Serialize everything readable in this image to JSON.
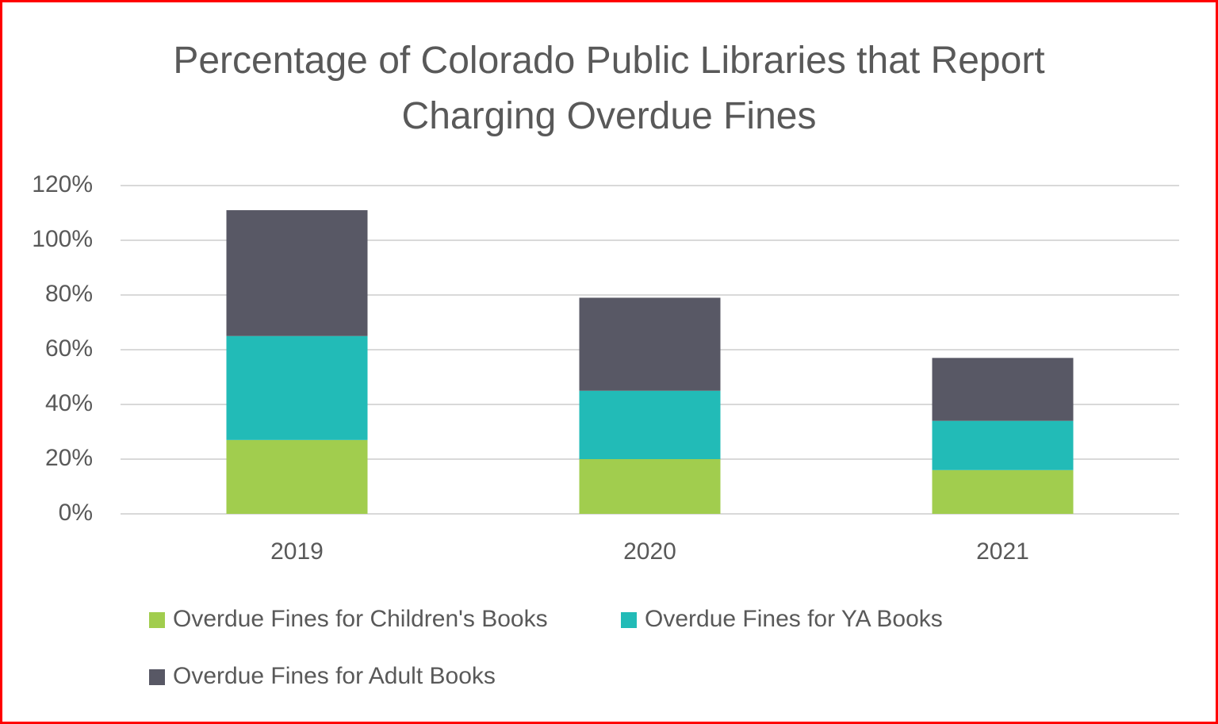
{
  "chart_data": {
    "type": "stacked-bar",
    "title": "Percentage of Colorado Public Libraries that Report Charging Overdue Fines",
    "categories": [
      "2019",
      "2020",
      "2021"
    ],
    "series": [
      {
        "name": "Overdue Fines for Children's Books",
        "color": "#a1cd4e",
        "values": [
          27,
          20,
          16
        ]
      },
      {
        "name": "Overdue Fines for YA Books",
        "color": "#22bbb7",
        "values": [
          38,
          25,
          18
        ]
      },
      {
        "name": "Overdue Fines for Adult Books",
        "color": "#585865",
        "values": [
          46,
          34,
          23
        ]
      }
    ],
    "ylim": [
      0,
      120
    ],
    "yticks": [
      {
        "value": 0,
        "label": "0%"
      },
      {
        "value": 20,
        "label": "20%"
      },
      {
        "value": 40,
        "label": "40%"
      },
      {
        "value": 60,
        "label": "60%"
      },
      {
        "value": 80,
        "label": "80%"
      },
      {
        "value": 100,
        "label": "100%"
      },
      {
        "value": 120,
        "label": "120%"
      }
    ],
    "grid": true,
    "legend": "bottom"
  }
}
